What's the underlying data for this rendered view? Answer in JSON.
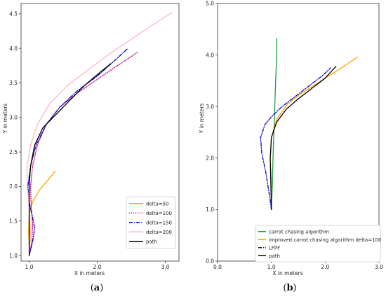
{
  "captions": [
    {
      "open": "(",
      "letter": "a",
      "close": ")"
    },
    {
      "open": "(",
      "letter": "b",
      "close": ")"
    }
  ],
  "chart_data": [
    {
      "type": "line",
      "xlabel": "X in meters",
      "ylabel": "Y in meters",
      "xlim": [
        0.88,
        3.2
      ],
      "ylim": [
        0.92,
        4.65
      ],
      "xticks": [
        1.0,
        2.0,
        3.0
      ],
      "xtick_labels": [
        "1.0",
        "2.0",
        "3.0"
      ],
      "yticks": [
        1.0,
        1.5,
        2.0,
        2.5,
        3.0,
        3.5,
        4.0,
        4.5
      ],
      "ytick_labels": [
        "1.0",
        "1.5",
        "2.0",
        "2.5",
        "3.0",
        "3.5",
        "4.0",
        "4.5"
      ],
      "grid": false,
      "legend_position": "lower-right",
      "series": [
        {
          "name": "delta=50",
          "color": "#ffa500",
          "dash": "solid",
          "points": [
            [
              1.0,
              1.0
            ],
            [
              1.0,
              1.15
            ],
            [
              0.99,
              1.35
            ],
            [
              1.0,
              1.6
            ],
            [
              1.05,
              1.78
            ],
            [
              1.15,
              1.95
            ],
            [
              1.28,
              2.1
            ],
            [
              1.38,
              2.22
            ]
          ]
        },
        {
          "name": "delta=100",
          "color": "#c71585",
          "dash": "dotted",
          "points": [
            [
              1.0,
              1.0
            ],
            [
              1.04,
              1.2
            ],
            [
              1.05,
              1.45
            ],
            [
              1.03,
              1.7
            ],
            [
              1.02,
              2.0
            ],
            [
              1.05,
              2.3
            ],
            [
              1.12,
              2.6
            ],
            [
              1.25,
              2.9
            ],
            [
              1.45,
              3.15
            ],
            [
              1.7,
              3.35
            ],
            [
              2.0,
              3.55
            ],
            [
              2.25,
              3.72
            ],
            [
              2.45,
              3.85
            ],
            [
              2.6,
              3.95
            ]
          ]
        },
        {
          "name": "delta=150",
          "color": "#0000cd",
          "dash": "dashdot",
          "points": [
            [
              1.0,
              1.0
            ],
            [
              1.05,
              1.2
            ],
            [
              1.08,
              1.4
            ],
            [
              1.04,
              1.6
            ],
            [
              0.99,
              1.8
            ],
            [
              0.98,
              2.0
            ],
            [
              1.02,
              2.3
            ],
            [
              1.1,
              2.6
            ],
            [
              1.25,
              2.9
            ],
            [
              1.45,
              3.15
            ],
            [
              1.7,
              3.38
            ],
            [
              2.0,
              3.6
            ],
            [
              2.25,
              3.82
            ],
            [
              2.45,
              4.0
            ]
          ]
        },
        {
          "name": "delta=200",
          "color": "#ffb6c1",
          "dash": "solid",
          "points": [
            [
              1.0,
              1.0
            ],
            [
              1.02,
              1.3
            ],
            [
              1.0,
              1.7
            ],
            [
              0.97,
              2.0
            ],
            [
              0.97,
              2.3
            ],
            [
              1.02,
              2.6
            ],
            [
              1.12,
              2.9
            ],
            [
              1.3,
              3.2
            ],
            [
              1.55,
              3.45
            ],
            [
              1.85,
              3.68
            ],
            [
              2.15,
              3.9
            ],
            [
              2.45,
              4.1
            ],
            [
              2.75,
              4.3
            ],
            [
              3.1,
              4.52
            ]
          ]
        },
        {
          "name": "path",
          "color": "#000000",
          "dash": "solid",
          "points": [
            [
              1.0,
              1.0
            ],
            [
              1.0,
              1.5
            ],
            [
              1.0,
              2.0
            ],
            [
              1.02,
              2.3
            ],
            [
              1.08,
              2.6
            ],
            [
              1.2,
              2.85
            ],
            [
              1.4,
              3.05
            ],
            [
              1.6,
              3.25
            ],
            [
              1.8,
              3.45
            ],
            [
              2.0,
              3.62
            ],
            [
              2.2,
              3.78
            ]
          ]
        }
      ]
    },
    {
      "type": "line",
      "xlabel": "X in meters",
      "ylabel": "Y in meters",
      "xlim": [
        0.0,
        3.0
      ],
      "ylim": [
        0.0,
        5.0
      ],
      "xticks": [
        0.0,
        1.0,
        2.0,
        3.0
      ],
      "xtick_labels": [
        "0.0",
        "1.0",
        "2.0",
        "3.0"
      ],
      "yticks": [
        0.0,
        1.0,
        2.0,
        3.0,
        4.0,
        5.0
      ],
      "ytick_labels": [
        "0.0",
        "1.0",
        "2.0",
        "3.0",
        "4.0",
        "5.0"
      ],
      "grid": false,
      "legend_position": "lower-left",
      "series": [
        {
          "name": "carrot chasing algorithm",
          "color": "#1a9e3f",
          "dash": "solid",
          "points": [
            [
              1.0,
              1.0
            ],
            [
              1.02,
              1.5
            ],
            [
              1.03,
              2.0
            ],
            [
              1.05,
              2.6
            ],
            [
              1.07,
              3.2
            ],
            [
              1.09,
              3.8
            ],
            [
              1.1,
              4.32
            ]
          ]
        },
        {
          "name": "improved carrot chasing algorithm delta=100",
          "color": "#ffa500",
          "dash": "solid",
          "points": [
            [
              1.0,
              1.0
            ],
            [
              1.0,
              1.5
            ],
            [
              0.98,
              2.0
            ],
            [
              1.0,
              2.4
            ],
            [
              1.1,
              2.75
            ],
            [
              1.3,
              3.05
            ],
            [
              1.55,
              3.25
            ],
            [
              1.85,
              3.45
            ],
            [
              2.15,
              3.65
            ],
            [
              2.4,
              3.82
            ],
            [
              2.6,
              3.96
            ]
          ]
        },
        {
          "name": "LFPF",
          "color": "#0000cd",
          "dash": "dashdot",
          "points": [
            [
              1.0,
              1.0
            ],
            [
              0.96,
              1.3
            ],
            [
              0.9,
              1.7
            ],
            [
              0.82,
              2.1
            ],
            [
              0.8,
              2.4
            ],
            [
              0.88,
              2.65
            ],
            [
              1.0,
              2.8
            ],
            [
              1.2,
              3.0
            ],
            [
              1.45,
              3.2
            ],
            [
              1.7,
              3.4
            ],
            [
              1.95,
              3.6
            ],
            [
              2.1,
              3.75
            ]
          ]
        },
        {
          "name": "path",
          "color": "#000000",
          "dash": "solid",
          "points": [
            [
              1.0,
              1.0
            ],
            [
              0.99,
              1.5
            ],
            [
              0.98,
              2.0
            ],
            [
              1.0,
              2.4
            ],
            [
              1.1,
              2.7
            ],
            [
              1.28,
              2.95
            ],
            [
              1.5,
              3.15
            ],
            [
              1.75,
              3.35
            ],
            [
              2.0,
              3.55
            ],
            [
              2.2,
              3.78
            ]
          ]
        }
      ]
    }
  ]
}
